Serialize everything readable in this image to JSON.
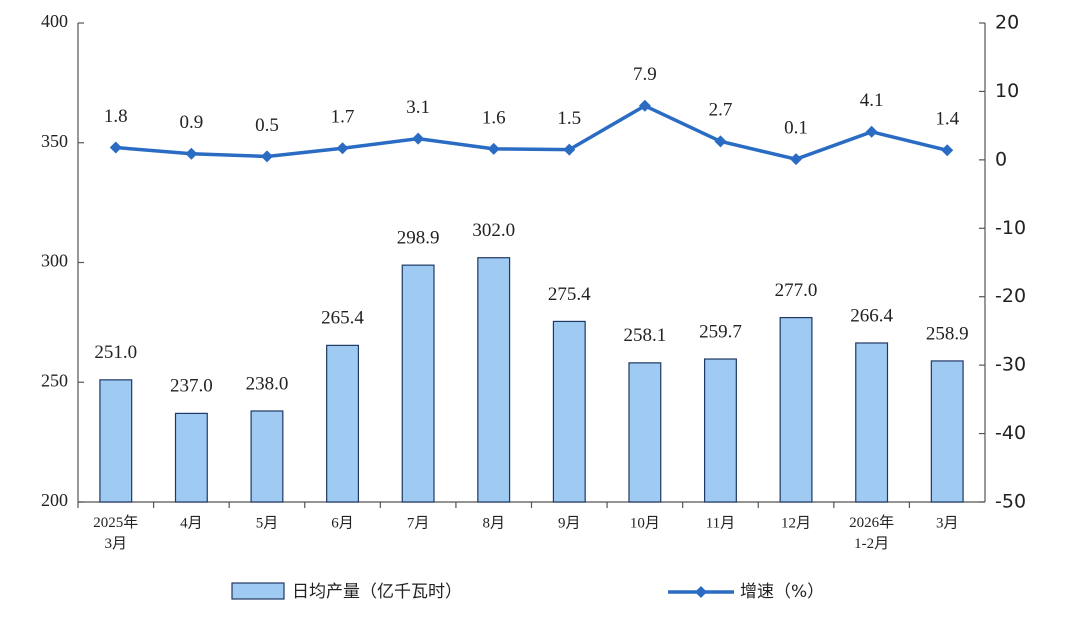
{
  "chart_data": {
    "type": "bar-line",
    "categories": [
      "2025年\n3月",
      "4月",
      "5月",
      "6月",
      "7月",
      "8月",
      "9月",
      "10月",
      "11月",
      "12月",
      "2026年\n1-2月",
      "3月"
    ],
    "series": [
      {
        "name": "日均产量（亿千瓦时）",
        "type": "bar",
        "color": "#9fcaf2",
        "axis": "y",
        "values": [
          251.0,
          237.0,
          238.0,
          265.4,
          298.9,
          302.0,
          275.4,
          258.1,
          259.7,
          277.0,
          266.4,
          258.9
        ],
        "value_labels": [
          "251.0",
          "237.0",
          "238.0",
          "265.4",
          "298.9",
          "302.0",
          "275.4",
          "258.1",
          "259.7",
          "277.0",
          "266.4",
          "258.9"
        ]
      },
      {
        "name": "增速（%）",
        "type": "line",
        "color": "#2a6cc4",
        "axis": "y2",
        "values": [
          1.8,
          0.9,
          0.5,
          1.7,
          3.1,
          1.6,
          1.5,
          7.9,
          2.7,
          0.1,
          4.1,
          1.4
        ]
      }
    ],
    "ylim": [
      200,
      400
    ],
    "yticks": [
      200,
      250,
      300,
      350,
      400
    ],
    "y2lim": [
      -50,
      20
    ],
    "y2ticks": [
      -50,
      -40,
      -30,
      -20,
      -10,
      0,
      10,
      20
    ]
  }
}
